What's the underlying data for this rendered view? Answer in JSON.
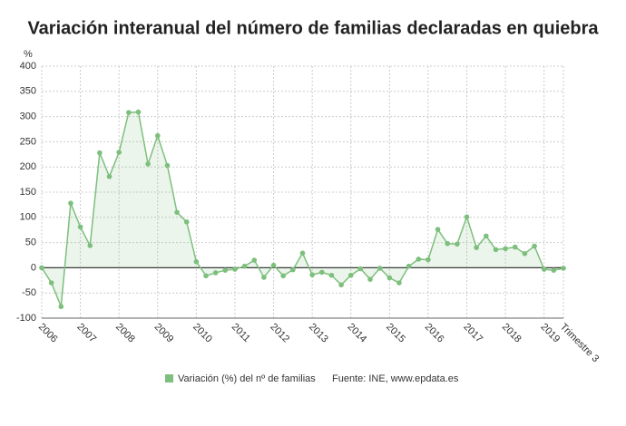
{
  "chart_data": {
    "type": "line",
    "title": "Variación interanual del número de familias declaradas en quiebra",
    "y_label": "%",
    "source": "Fuente: INE, www.epdata.es",
    "categories": [
      "2006",
      null,
      null,
      null,
      "2007",
      null,
      null,
      null,
      "2008",
      null,
      null,
      null,
      "2009",
      null,
      null,
      null,
      "2010",
      null,
      null,
      null,
      "2011",
      null,
      null,
      null,
      "2012",
      null,
      null,
      null,
      "2013",
      null,
      null,
      null,
      "2014",
      null,
      null,
      null,
      "2015",
      null,
      null,
      null,
      "2016",
      null,
      null,
      null,
      "2017",
      null,
      null,
      null,
      "2018",
      null,
      null,
      null,
      "2019",
      null,
      "Trimestre 3"
    ],
    "series": [
      {
        "name": "Variación (%) del nº de familias",
        "color": "#7dbf7d",
        "values": [
          0,
          -30,
          -77,
          128,
          81,
          44,
          228,
          181,
          229,
          308,
          309,
          206,
          262,
          203,
          110,
          91,
          12,
          -16,
          -10,
          -5,
          -3,
          3,
          15,
          -19,
          5,
          -16,
          -4,
          29,
          -14,
          -9,
          -15,
          -34,
          -15,
          -2,
          -23,
          -1,
          -20,
          -30,
          3,
          17,
          16,
          76,
          48,
          47,
          101,
          40,
          63,
          36,
          38,
          41,
          28,
          43,
          -3,
          -5,
          -1
        ]
      }
    ],
    "ylim": [
      -100,
      400
    ],
    "yticks": [
      -100,
      -50,
      0,
      50,
      100,
      150,
      200,
      250,
      300,
      350,
      400
    ],
    "grid": true
  }
}
